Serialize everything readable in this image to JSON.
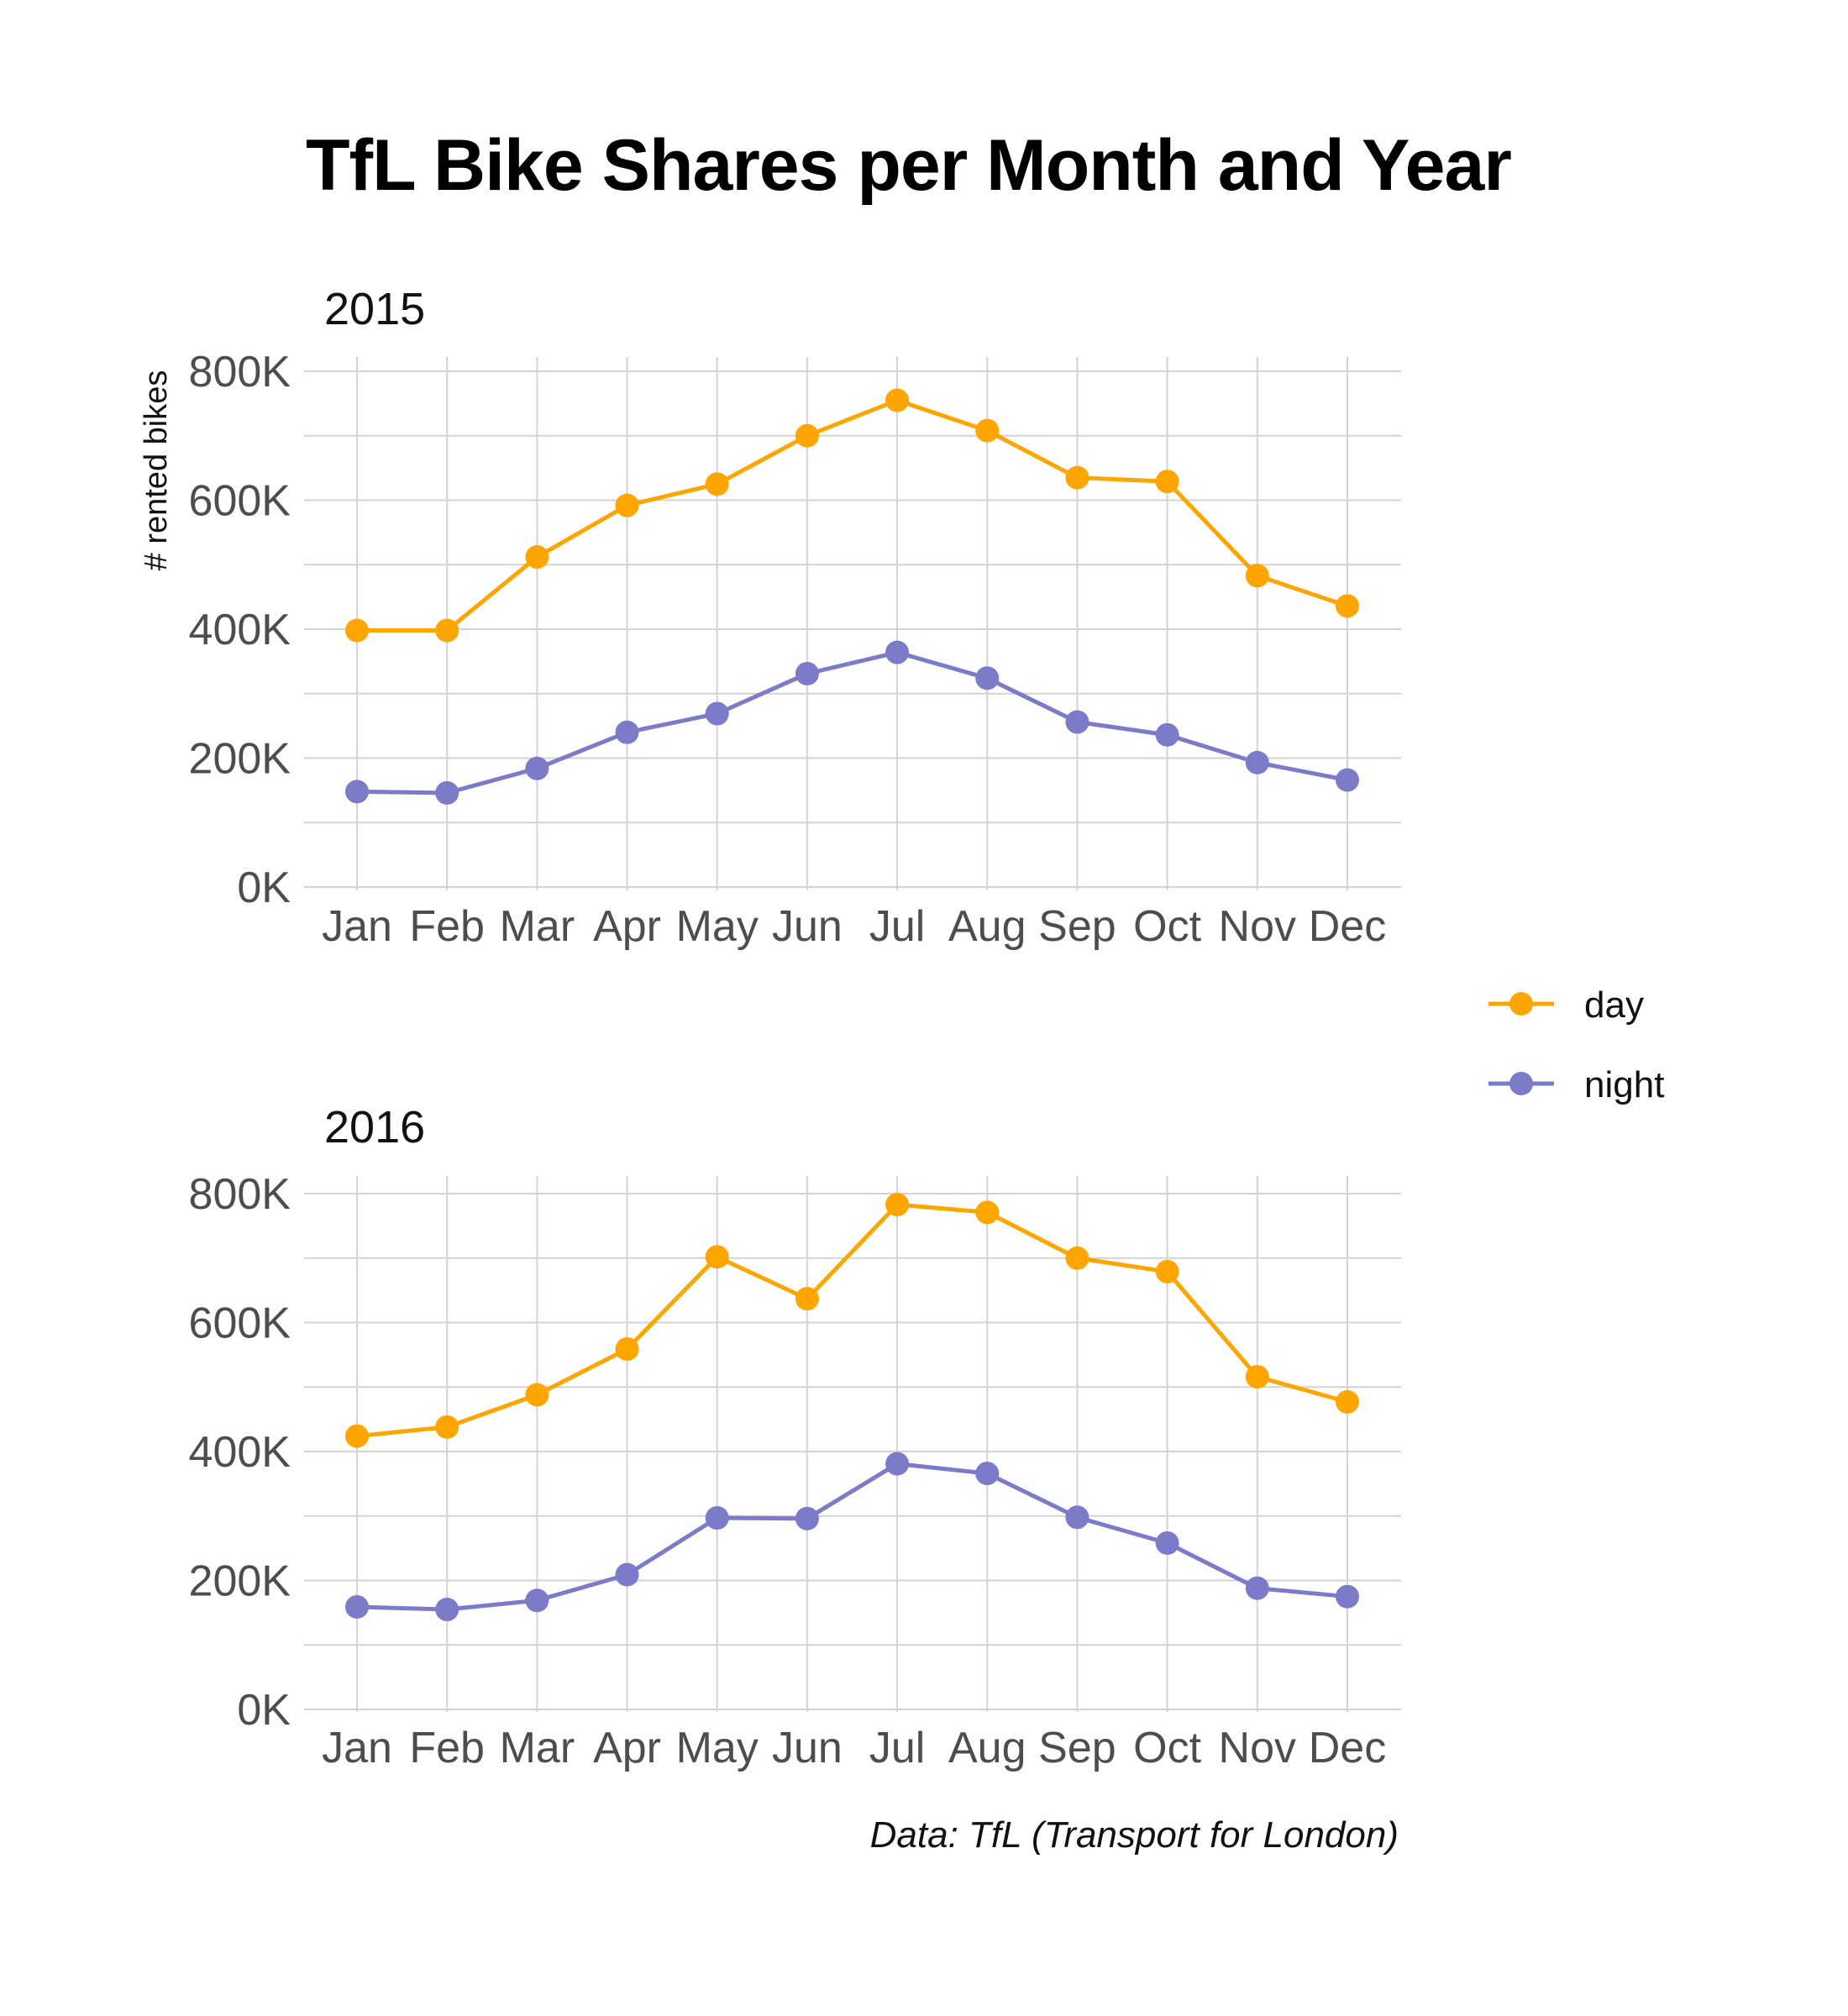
{
  "title": "TfL Bike Shares per Month and Year",
  "caption": "Data: TfL (Transport for London)",
  "chart_data": {
    "type": "line",
    "title": "TfL Bike Shares per Month and Year",
    "ylabel": "# rented bikes",
    "xlabel": "",
    "categories": [
      "Jan",
      "Feb",
      "Mar",
      "Apr",
      "May",
      "Jun",
      "Jul",
      "Aug",
      "Sep",
      "Oct",
      "Nov",
      "Dec"
    ],
    "yticks": [
      0,
      200000,
      400000,
      600000,
      800000
    ],
    "ytick_labels": [
      "0K",
      "200K",
      "400K",
      "600K",
      "800K"
    ],
    "ylim": [
      0,
      800000
    ],
    "grid": true,
    "legend_position": "right",
    "colors": {
      "day": "#FFA500",
      "night": "#7B7BC9"
    },
    "legend": [
      {
        "name": "day",
        "color": "#FFA500"
      },
      {
        "name": "night",
        "color": "#7B7BC9"
      }
    ],
    "panels": [
      {
        "label": "2015",
        "series": [
          {
            "name": "day",
            "values": [
              398000,
              398000,
              512000,
              592000,
              625000,
              700000,
              755000,
              708000,
              635000,
              629000,
              483000,
              436000
            ]
          },
          {
            "name": "night",
            "values": [
              148000,
              146000,
              184000,
              240000,
              269000,
              331000,
              364000,
              324000,
              256000,
              236000,
              193000,
              166000
            ]
          }
        ]
      },
      {
        "label": "2016",
        "series": [
          {
            "name": "day",
            "values": [
              424000,
              438000,
              488000,
              559000,
              702000,
              637000,
              783000,
              771000,
              700000,
              679000,
              516000,
              477000
            ]
          },
          {
            "name": "night",
            "values": [
              159000,
              155000,
              169000,
              209000,
              297000,
              296000,
              381000,
              366000,
              298000,
              258000,
              188000,
              175000
            ]
          }
        ]
      }
    ]
  }
}
